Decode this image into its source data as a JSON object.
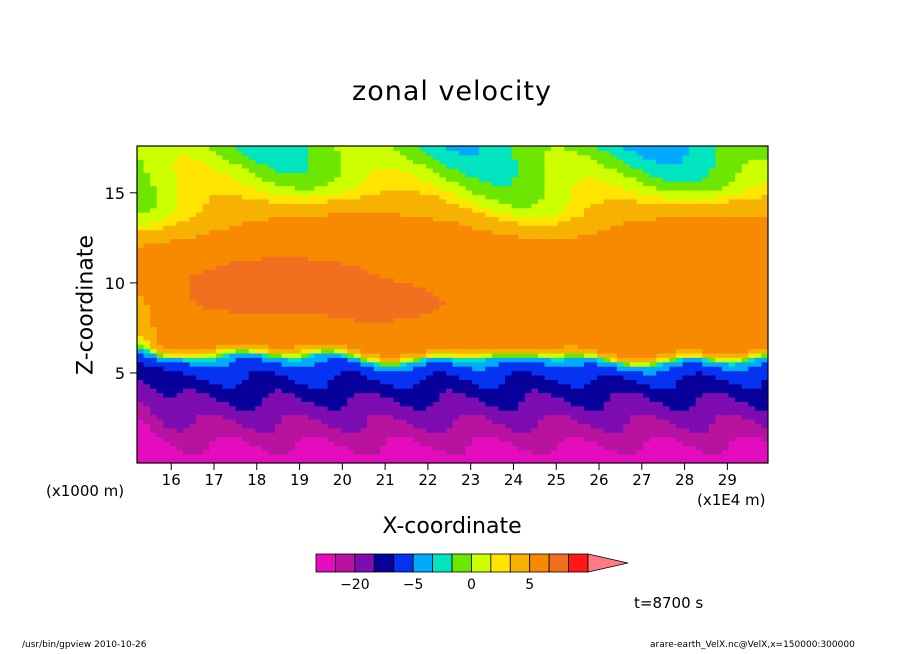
{
  "chart_data": {
    "type": "heatmap",
    "title": "zonal velocity",
    "xlabel": "X-coordinate",
    "ylabel": "Z-coordinate",
    "x_unit_note": "(x1E4 m)",
    "y_unit_note": "(x1000 m)",
    "x_ticks": [
      16,
      17,
      18,
      19,
      20,
      21,
      22,
      23,
      24,
      25,
      26,
      27,
      28,
      29
    ],
    "y_ticks": [
      5,
      10,
      15
    ],
    "xlim": [
      15.2,
      29.95
    ],
    "ylim": [
      0,
      17.6
    ],
    "colorbar": {
      "levels": [
        -30,
        -25,
        -20,
        -15,
        -10,
        -5,
        -2,
        -1,
        0,
        1,
        2,
        5,
        10,
        15,
        20
      ],
      "colors": [
        "#e40dbe",
        "#b8139f",
        "#7d0db0",
        "#08009b",
        "#0633f2",
        "#00aaff",
        "#00e5c0",
        "#6de600",
        "#ccff00",
        "#ffe500",
        "#f7b100",
        "#f78a00",
        "#f07020",
        "#ff1818"
      ],
      "extend_color": "#ff7b86",
      "tick_labels": [
        {
          "value": -20,
          "text": "−20"
        },
        {
          "value": -5,
          "text": "−5"
        },
        {
          "value": 0,
          "text": "0"
        },
        {
          "value": 5,
          "text": "5"
        }
      ]
    },
    "time_label": "t=8700 s",
    "field": {
      "description": "zonal velocity U(x,z) sampled on a coarse grid",
      "x": [
        15.2,
        15.5,
        16,
        16.5,
        17,
        17.5,
        18,
        18.5,
        19,
        19.5,
        20,
        20.5,
        21,
        22,
        23,
        24,
        25,
        26,
        27,
        28,
        29,
        29.95
      ],
      "z": [
        0,
        1,
        2,
        3,
        4,
        4.5,
        5,
        5.5,
        6,
        6.5,
        7,
        7.5,
        8,
        8.5,
        9,
        9.5,
        10,
        10.5,
        11,
        11.5,
        12,
        12.5,
        13,
        13.5,
        14,
        15,
        16,
        17,
        17.6
      ]
    }
  },
  "footer_left": "/usr/bin/gpview  2010-10-26",
  "footer_right": "arare-earth_VelX.nc@VelX,x=150000:300000"
}
